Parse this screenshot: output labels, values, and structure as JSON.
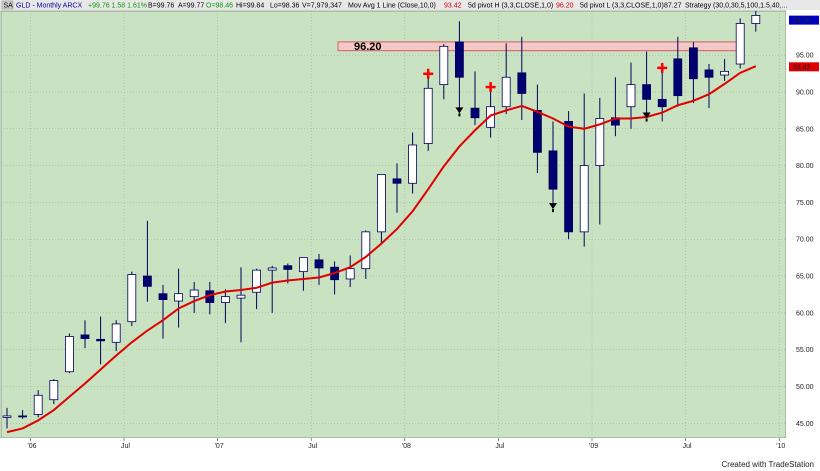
{
  "header": {
    "badge": "SA",
    "symbol_desc": "GLD - Monthly ARCX",
    "change": "+99.76 1.58 1.61%",
    "bid": "B=99.76",
    "ask": "A=99.77",
    "open": "O=98.46",
    "high": "Hi=99.84",
    "low": "Lo=98.36",
    "volume": "V=7,979,347",
    "ma_study": "Mov Avg 1 Line (Close,10,0)",
    "ma_value": "93.42",
    "pivot_h_study": "5d pivot H (3,3,CLOSE,1,0)",
    "pivot_h_value": "96.20",
    "pivot_l_study": "5d pivot L (3,3,CLOSE,1,0)",
    "pivot_l_value": "87.27",
    "strategy": "Strategy (30,0,30,5,100,1.5,40,..."
  },
  "footer": "Created with TradeStation",
  "colors": {
    "plot_bg": "#c9e3c2",
    "bull_candle": "#ffffff",
    "bear_candle": "#00006e",
    "ma_line": "#e00000",
    "pivot_cross": "#ff0000",
    "pivot_low_arrow": "#000000",
    "resistance_band": "#f4c8c8",
    "last_price_bg": "#0000c0",
    "ma_price_bg": "#e00000"
  },
  "chart_data": {
    "type": "candlestick",
    "title": "GLD - Monthly ARCX",
    "x_tick_labels": [
      "'06",
      "Jul",
      "'07",
      "Jul",
      "'08",
      "Jul",
      "'09",
      "Jul",
      "'10"
    ],
    "y_ticks": [
      45,
      50,
      55,
      60,
      65,
      70,
      75,
      80,
      85,
      90,
      95
    ],
    "ylim": [
      43,
      101
    ],
    "grid": true,
    "resistance": {
      "label": "96.20",
      "low": 95.6,
      "high": 96.8
    },
    "last_price": "99.76",
    "ma_price": "93.42",
    "months": [
      "2005-11",
      "2005-12",
      "2006-01",
      "2006-02",
      "2006-03",
      "2006-04",
      "2006-05",
      "2006-06",
      "2006-07",
      "2006-08",
      "2006-09",
      "2006-10",
      "2006-11",
      "2006-12",
      "2007-01",
      "2007-02",
      "2007-03",
      "2007-04",
      "2007-05",
      "2007-06",
      "2007-07",
      "2007-08",
      "2007-09",
      "2007-10",
      "2007-11",
      "2007-12",
      "2008-01",
      "2008-02",
      "2008-03",
      "2008-04",
      "2008-05",
      "2008-06",
      "2008-07",
      "2008-08",
      "2008-09",
      "2008-10",
      "2008-11",
      "2008-12",
      "2009-01",
      "2009-02",
      "2009-03",
      "2009-04",
      "2009-05",
      "2009-06",
      "2009-07",
      "2009-08",
      "2009-09",
      "2009-10",
      "2009-11"
    ],
    "ohlc": [
      [
        45.8,
        47.1,
        44.3,
        46.0
      ],
      [
        46.0,
        46.8,
        45.6,
        45.9
      ],
      [
        46.2,
        49.5,
        45.8,
        48.8
      ],
      [
        48.2,
        51.0,
        47.6,
        50.8
      ],
      [
        52.0,
        57.2,
        51.8,
        56.8
      ],
      [
        57.0,
        59.0,
        55.2,
        56.5
      ],
      [
        56.4,
        59.5,
        53.0,
        56.2
      ],
      [
        56.0,
        59.0,
        54.8,
        58.5
      ],
      [
        58.8,
        65.6,
        58.2,
        65.2
      ],
      [
        65.0,
        72.5,
        61.5,
        63.6
      ],
      [
        62.6,
        63.8,
        56.5,
        61.8
      ],
      [
        61.6,
        66.0,
        58.0,
        62.6
      ],
      [
        62.2,
        64.2,
        60.0,
        63.1
      ],
      [
        63.0,
        64.2,
        59.8,
        61.4
      ],
      [
        61.4,
        63.2,
        58.6,
        62.2
      ],
      [
        62.0,
        66.2,
        56.0,
        62.4
      ],
      [
        62.8,
        66.0,
        60.5,
        65.8
      ],
      [
        65.8,
        66.4,
        60.0,
        66.1
      ],
      [
        66.4,
        66.7,
        64.0,
        65.9
      ],
      [
        65.6,
        67.5,
        63.0,
        67.5
      ],
      [
        67.2,
        68.0,
        63.8,
        66.1
      ],
      [
        66.2,
        67.0,
        62.5,
        64.5
      ],
      [
        64.6,
        67.8,
        63.5,
        66.0
      ],
      [
        66.0,
        71.2,
        64.6,
        71.0
      ],
      [
        71.0,
        78.5,
        69.5,
        78.8
      ],
      [
        78.2,
        80.3,
        73.6,
        77.6
      ],
      [
        77.6,
        84.5,
        76.2,
        82.8
      ],
      [
        83.0,
        92.2,
        82.0,
        90.5
      ],
      [
        91.0,
        96.5,
        89.0,
        96.2
      ],
      [
        96.8,
        99.6,
        87.5,
        92.0
      ],
      [
        87.8,
        92.8,
        85.5,
        86.5
      ],
      [
        85.2,
        90.4,
        83.8,
        88.0
      ],
      [
        88.0,
        96.6,
        87.0,
        92.0
      ],
      [
        92.6,
        97.5,
        86.2,
        89.8
      ],
      [
        87.5,
        91.0,
        79.0,
        81.8
      ],
      [
        82.0,
        86.0,
        74.5,
        76.8
      ],
      [
        86.0,
        87.4,
        70.0,
        71.0
      ],
      [
        71.0,
        89.8,
        69.0,
        80.0
      ],
      [
        80.0,
        89.2,
        72.0,
        86.4
      ],
      [
        86.5,
        92.0,
        84.0,
        85.5
      ],
      [
        88.0,
        94.0,
        85.0,
        91.0
      ],
      [
        91.0,
        95.5,
        86.8,
        89.0
      ],
      [
        89.0,
        93.0,
        86.0,
        88.0
      ],
      [
        94.5,
        97.5,
        88.0,
        89.5
      ],
      [
        96.0,
        96.8,
        88.5,
        91.8
      ],
      [
        93.0,
        93.8,
        87.8,
        92.0
      ],
      [
        92.3,
        94.5,
        91.5,
        92.8
      ],
      [
        93.8,
        100.0,
        93.2,
        99.3
      ],
      [
        99.3,
        101.0,
        98.2,
        100.4
      ]
    ],
    "moving_average": [
      43.8,
      44.3,
      45.4,
      46.8,
      48.6,
      50.4,
      52.3,
      54.2,
      56.0,
      57.6,
      59.0,
      60.6,
      61.6,
      62.4,
      62.9,
      63.1,
      63.4,
      64.1,
      64.4,
      64.6,
      64.8,
      65.4,
      66.2,
      67.6,
      69.4,
      71.4,
      73.8,
      76.8,
      79.9,
      82.6,
      84.8,
      86.8,
      87.5,
      88.1,
      87.3,
      86.4,
      85.3,
      85.0,
      85.6,
      86.4,
      86.4,
      86.6,
      87.2,
      88.2,
      88.8,
      89.7,
      91.1,
      92.6,
      93.5
    ],
    "pivot_high_months": [
      "2008-02",
      "2008-06",
      "2009-05"
    ],
    "pivot_low_months": [
      "2008-04",
      "2008-10",
      "2009-04"
    ]
  }
}
